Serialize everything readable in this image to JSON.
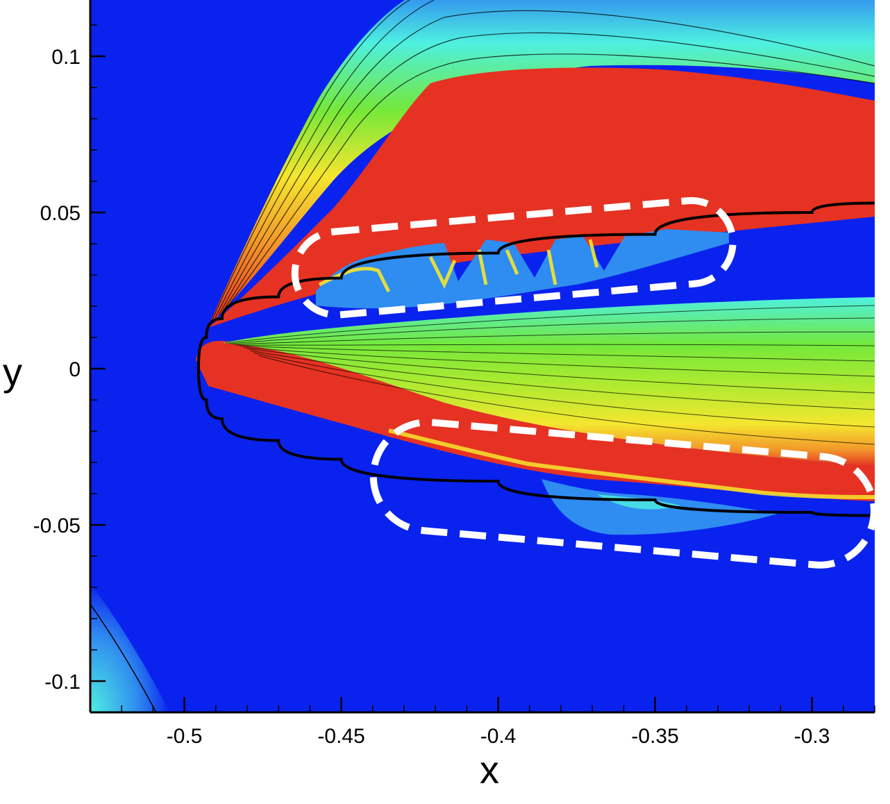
{
  "chart_data": {
    "type": "contour",
    "xlabel": "x",
    "ylabel": "y",
    "xlim": [
      -0.53,
      -0.28
    ],
    "ylim": [
      -0.11,
      0.118
    ],
    "grid": false,
    "legend": "none",
    "x_ticks": [
      {
        "value": -0.5,
        "label": "-0.5"
      },
      {
        "value": -0.45,
        "label": "-0.45"
      },
      {
        "value": -0.4,
        "label": "-0.4"
      },
      {
        "value": -0.35,
        "label": "-0.35"
      },
      {
        "value": -0.3,
        "label": "-0.3"
      }
    ],
    "y_ticks": [
      {
        "value": 0.1,
        "label": "0.1"
      },
      {
        "value": 0.05,
        "label": "0.05"
      },
      {
        "value": 0,
        "label": "0"
      },
      {
        "value": -0.05,
        "label": "-0.05"
      },
      {
        "value": -0.1,
        "label": "-0.1"
      }
    ],
    "colors": {
      "background": "#0a22ee",
      "high": "#e63222",
      "orange": "#f2972b",
      "yellow": "#f5e62e",
      "green": "#74e83a",
      "cyan": "#4ef0e0",
      "light_blue": "#2f8cf0",
      "annotation": "#ffffff",
      "body_line": "#000000"
    },
    "body_profile": {
      "nose": [
        -0.4955,
        0.0
      ],
      "upper": [
        [
          -0.4955,
          0.0
        ],
        [
          -0.493,
          0.01
        ],
        [
          -0.488,
          0.016
        ],
        [
          -0.47,
          0.023
        ],
        [
          -0.45,
          0.029
        ],
        [
          -0.4,
          0.037
        ],
        [
          -0.35,
          0.043
        ],
        [
          -0.3,
          0.05
        ],
        [
          -0.28,
          0.053
        ]
      ],
      "lower": [
        [
          -0.4955,
          0.0
        ],
        [
          -0.493,
          -0.01
        ],
        [
          -0.488,
          -0.016
        ],
        [
          -0.47,
          -0.023
        ],
        [
          -0.45,
          -0.029
        ],
        [
          -0.4,
          -0.036
        ],
        [
          -0.35,
          -0.042
        ],
        [
          -0.3,
          -0.046
        ],
        [
          -0.28,
          -0.047
        ]
      ]
    },
    "annotations": [
      {
        "shape": "dashed rounded region",
        "x": [
          -0.465,
          -0.325
        ],
        "y": [
          0.014,
          0.057
        ]
      },
      {
        "shape": "dashed rounded region",
        "x": [
          -0.44,
          -0.28
        ],
        "y": [
          -0.068,
          -0.012
        ]
      }
    ]
  }
}
